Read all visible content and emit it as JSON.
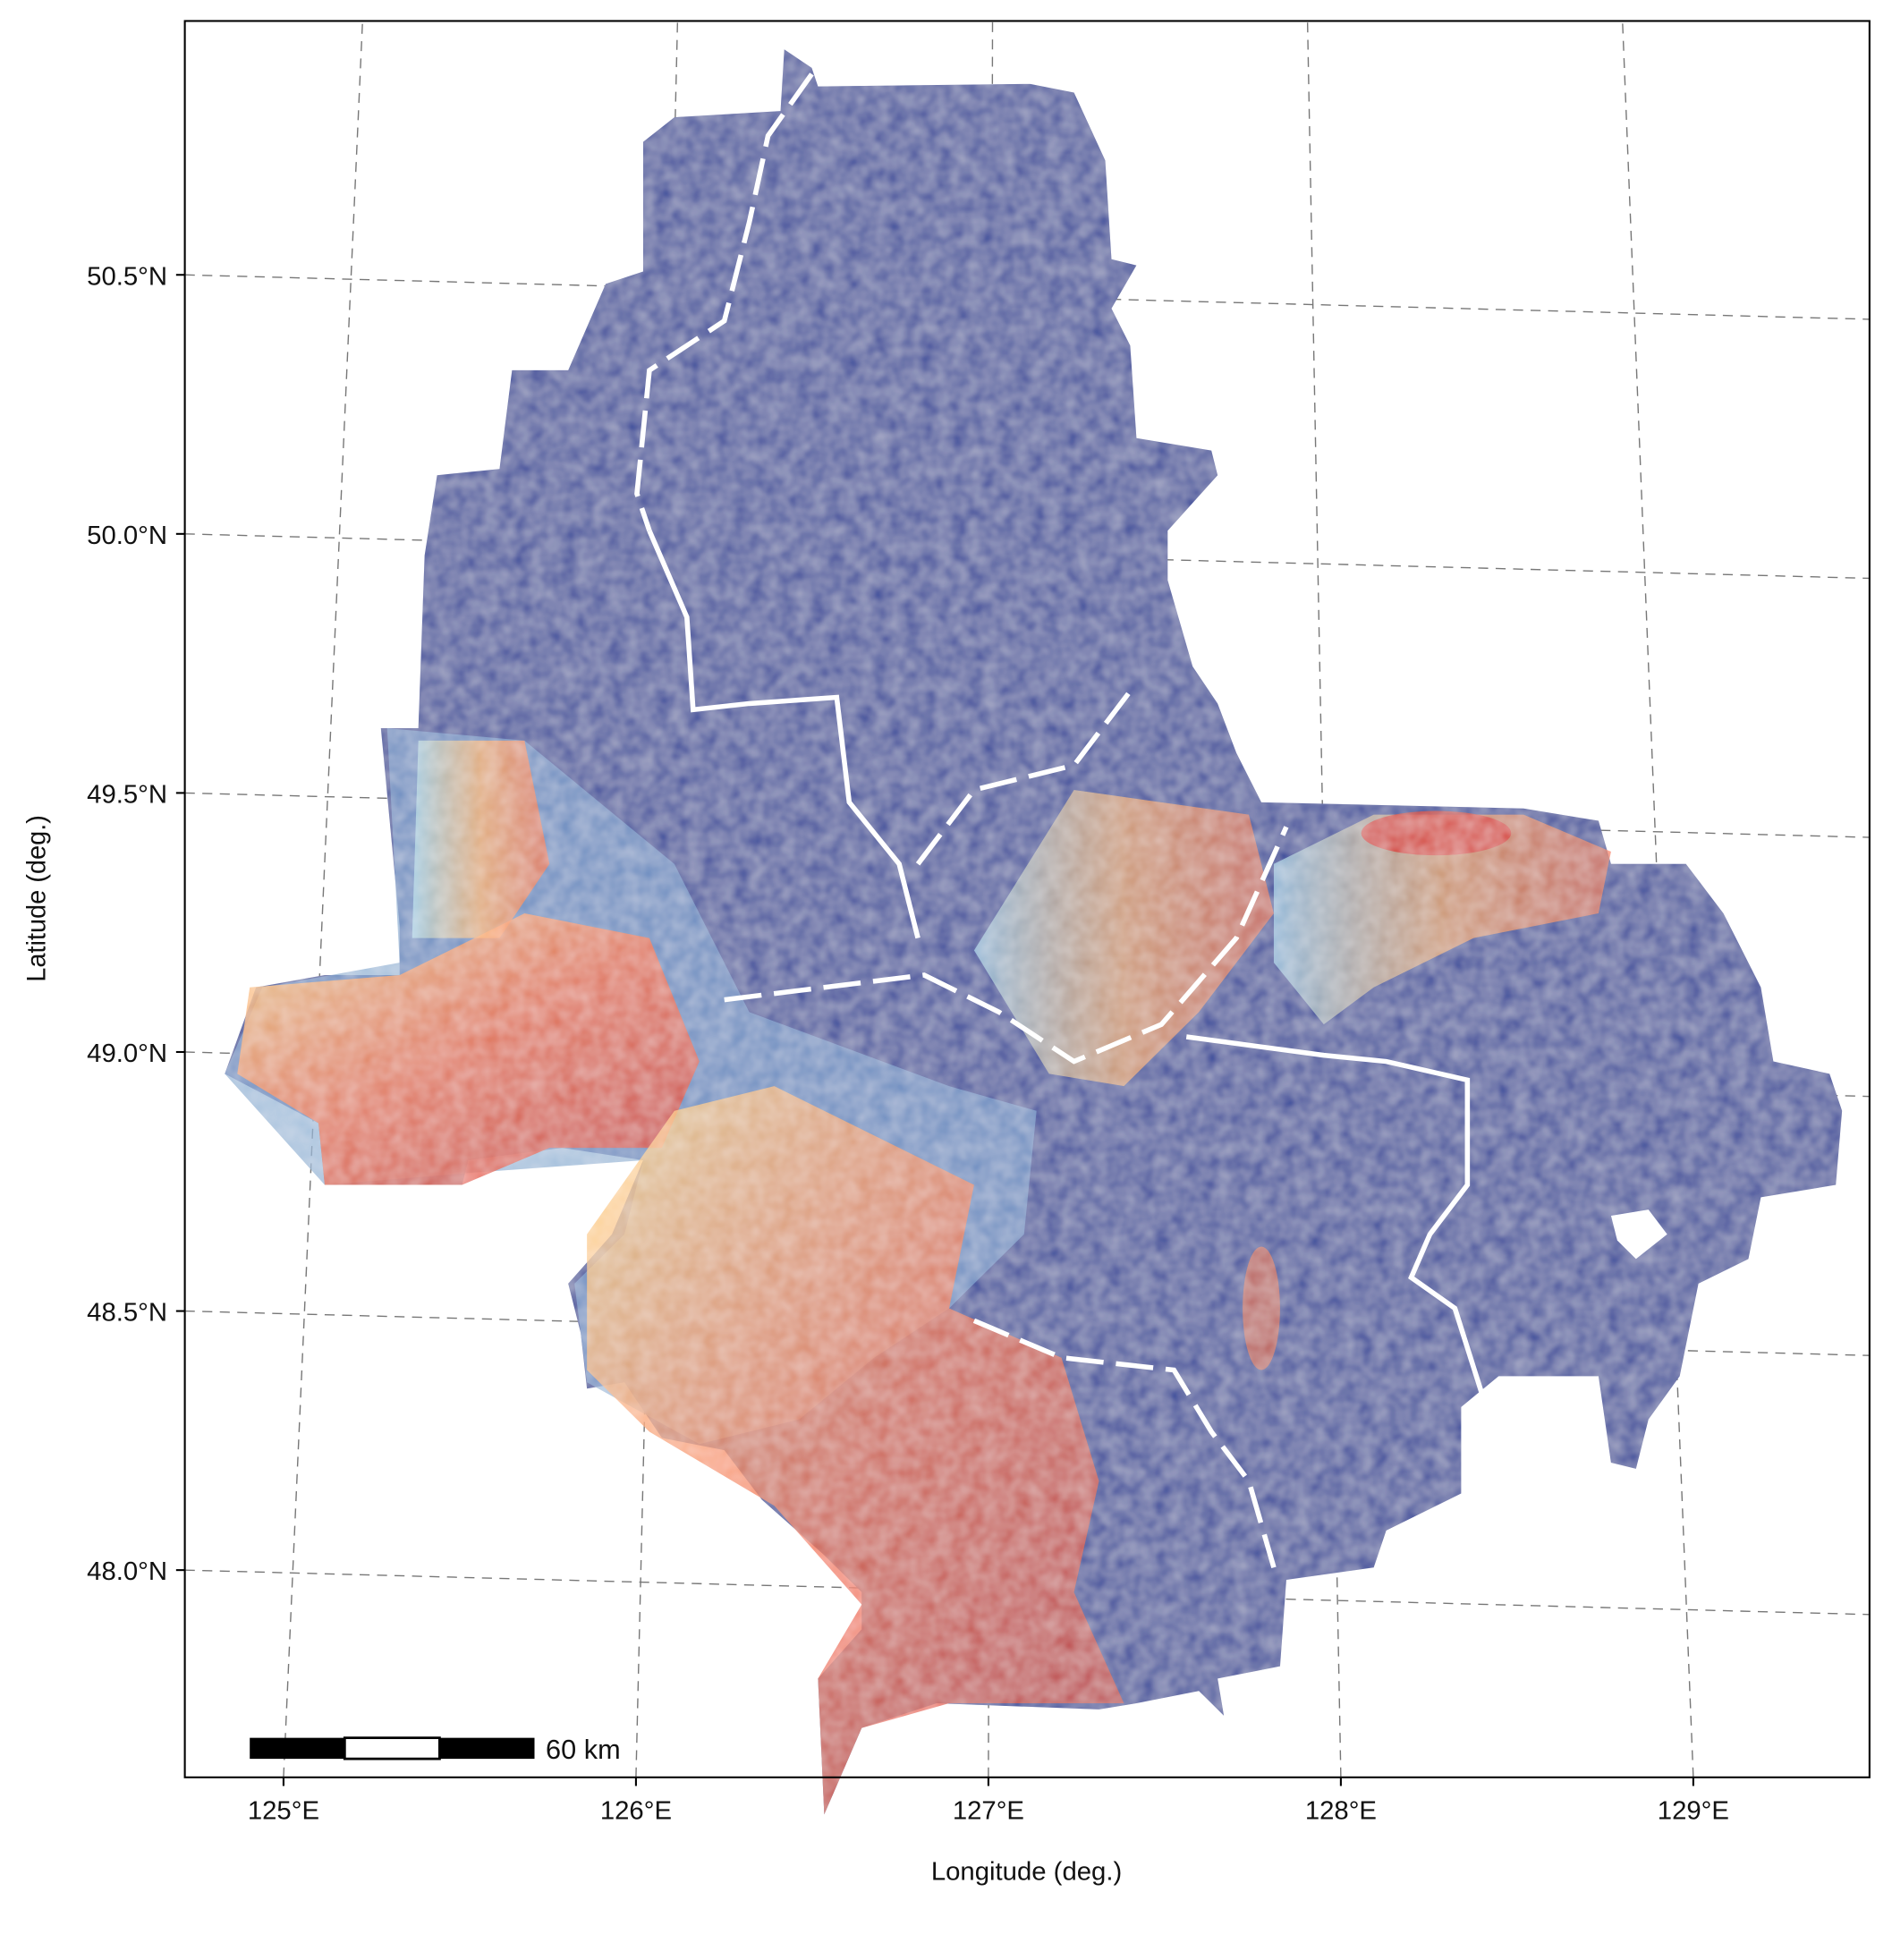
{
  "map": {
    "x_axis": {
      "title": "Longitude (deg.)",
      "lim": [
        124.72,
        129.5
      ],
      "ticks": [
        {
          "value": 125,
          "label": "125°E"
        },
        {
          "value": 126,
          "label": "126°E"
        },
        {
          "value": 127,
          "label": "127°E"
        },
        {
          "value": 128,
          "label": "128°E"
        },
        {
          "value": 129,
          "label": "129°E"
        }
      ]
    },
    "y_axis": {
      "title": "Latitude (deg.)",
      "lim": [
        47.6,
        50.99
      ],
      "ticks": [
        {
          "value": 48,
          "label": "48.0°N"
        },
        {
          "value": 48.5,
          "label": "48.5°N"
        },
        {
          "value": 49,
          "label": "49.0°N"
        },
        {
          "value": 49.5,
          "label": "49.5°N"
        },
        {
          "value": 50,
          "label": "50.0°N"
        },
        {
          "value": 50.5,
          "label": "50.5°N"
        }
      ]
    },
    "scale_bar": {
      "label": "60 km"
    }
  }
}
